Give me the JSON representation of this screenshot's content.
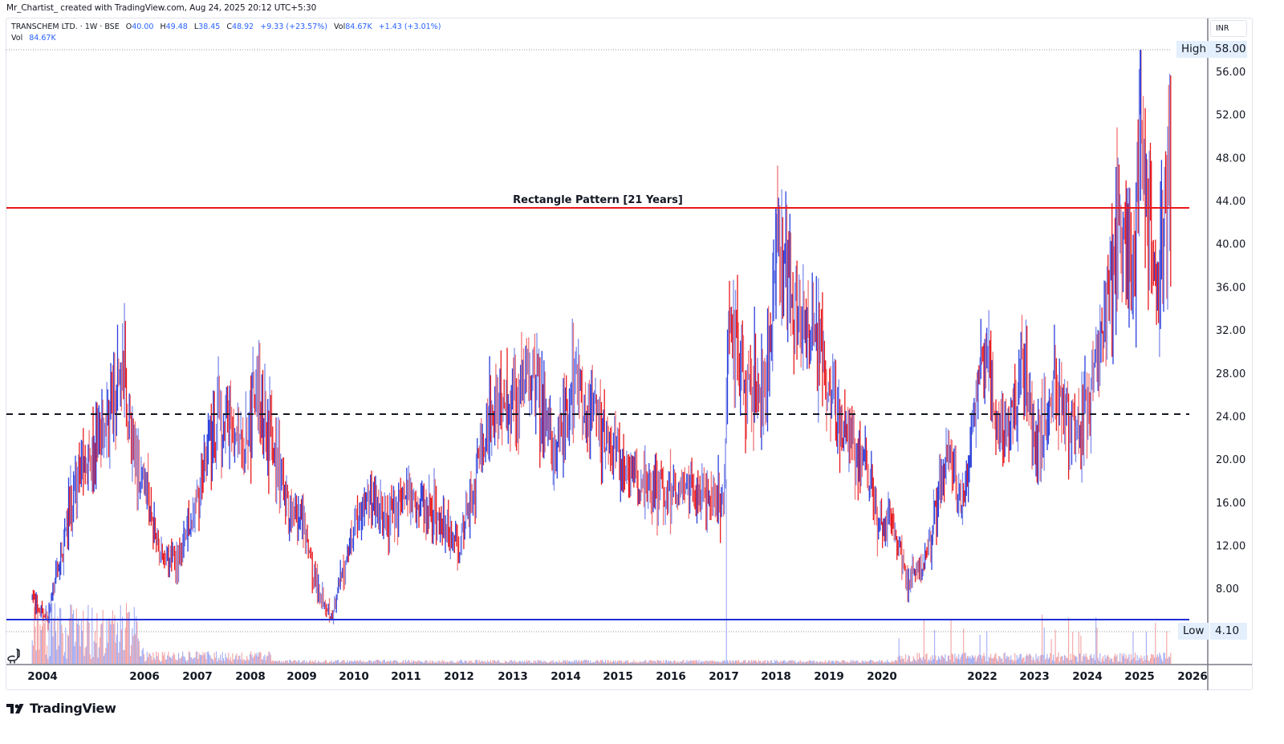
{
  "credit": "Mr_Chartist_ created with TradingView.com, Aug 24, 2025 20:12 UTC+5:30",
  "legend": {
    "symbol": "TRANSCHEM LTD. · 1W · BSE",
    "open_label": "O",
    "open": "40.00",
    "high_label": "H",
    "high": "49.48",
    "low_label": "L",
    "low": "38.45",
    "close_label": "C",
    "close": "48.92",
    "change": "+9.33 (+23.57%)",
    "vol_label": "Vol",
    "vol": "84.67K",
    "vol_change": "+1.43 (+3.01%)",
    "vol_row_label": "Vol",
    "vol_row_value": "84.67K"
  },
  "axis": {
    "currency": "INR",
    "high_tag": "High",
    "high_value": "58.00",
    "low_tag": "Low",
    "low_value": "4.10"
  },
  "annotation": "Rectangle Pattern [21 Years]",
  "footer": {
    "brand": "TradingView"
  },
  "colors": {
    "up": "#2a3fdc",
    "down": "#e8181c",
    "resistance": "#e8181c",
    "support": "#1f2fd6",
    "midline": "#131722",
    "tag_bg": "#e3effd"
  },
  "chart_data": {
    "type": "bar",
    "subtype": "ohlc-weekly",
    "title": "TRANSCHEM LTD. · 1W · BSE",
    "xlabel": "",
    "ylabel": "INR",
    "ylim": [
      4.1,
      58.0
    ],
    "y_ticks": [
      8,
      12,
      16,
      20,
      24,
      28,
      32,
      36,
      40,
      44,
      48,
      52,
      56
    ],
    "x_ticks": [
      "2004",
      "2006",
      "2007",
      "2008",
      "2009",
      "2010",
      "2011",
      "2012",
      "2013",
      "2014",
      "2015",
      "2016",
      "2017",
      "2018",
      "2019",
      "2020",
      "2022",
      "2023",
      "2024",
      "2025",
      "2026"
    ],
    "grid": false,
    "legend_position": "top-left",
    "last_bar": {
      "open": 40.0,
      "high": 49.48,
      "low": 38.45,
      "close": 48.92,
      "change": 9.33,
      "change_pct": 23.57,
      "volume": "84.67K"
    },
    "range_high": 58.0,
    "range_low": 4.1,
    "levels": [
      {
        "name": "Rectangle top (resistance)",
        "value": 43.3,
        "style": "solid",
        "color": "#e8181c"
      },
      {
        "name": "Mid-range",
        "value": 24.2,
        "style": "dashed",
        "color": "#131722"
      },
      {
        "name": "Rectangle bottom (support)",
        "value": 5.1,
        "style": "solid",
        "color": "#1f2fd6"
      }
    ],
    "annotations": [
      "Rectangle Pattern [21 Years]"
    ],
    "approx_price_path": {
      "x": [
        "2003.8",
        "2004.1",
        "2004.4",
        "2004.7",
        "2005.0",
        "2005.3",
        "2005.6",
        "2005.8",
        "2006.0",
        "2006.3",
        "2006.6",
        "2006.9",
        "2007.2",
        "2007.5",
        "2007.9",
        "2008.1",
        "2008.4",
        "2008.7",
        "2009.0",
        "2009.3",
        "2009.6",
        "2010.0",
        "2010.3",
        "2010.6",
        "2011.0",
        "2011.5",
        "2012.0",
        "2012.3",
        "2012.6",
        "2013.0",
        "2013.4",
        "2013.8",
        "2014.2",
        "2014.5",
        "2014.9",
        "2015.3",
        "2015.7",
        "2016.0",
        "2016.5",
        "2017.0",
        "2017.1",
        "2017.4",
        "2017.8",
        "2018.0",
        "2018.4",
        "2018.8",
        "2019.2",
        "2019.6",
        "2020.0",
        "2020.2",
        "2020.5",
        "2020.9",
        "2021.3",
        "2021.6",
        "2022.0",
        "2022.4",
        "2022.8",
        "2023.0",
        "2023.4",
        "2023.8",
        "2024.0",
        "2024.3",
        "2024.6",
        "2024.9",
        "2025.0",
        "2025.3",
        "2025.6"
      ],
      "close": [
        7.0,
        5.0,
        12.0,
        19.0,
        20.0,
        25.0,
        28.0,
        20.0,
        18.0,
        11.0,
        10.5,
        14.0,
        22.0,
        24.0,
        20.0,
        27.0,
        22.0,
        16.0,
        14.0,
        8.0,
        5.5,
        14.0,
        17.0,
        14.0,
        17.0,
        15.0,
        12.0,
        18.0,
        25.0,
        26.0,
        28.0,
        20.0,
        27.0,
        24.0,
        21.0,
        18.0,
        17.0,
        17.5,
        16.5,
        16.0,
        34.0,
        27.0,
        26.0,
        41.0,
        33.0,
        30.0,
        24.0,
        20.0,
        13.0,
        14.0,
        8.5,
        11.0,
        22.0,
        15.0,
        30.0,
        22.0,
        29.0,
        21.0,
        27.0,
        22.0,
        25.0,
        33.0,
        42.0,
        38.0,
        52.0,
        34.0,
        48.9
      ]
    },
    "volume_spikes": [
      {
        "x": "2004-2005",
        "note": "elevated volume cluster"
      },
      {
        "x": "2017.0",
        "note": "largest single spike"
      }
    ]
  }
}
